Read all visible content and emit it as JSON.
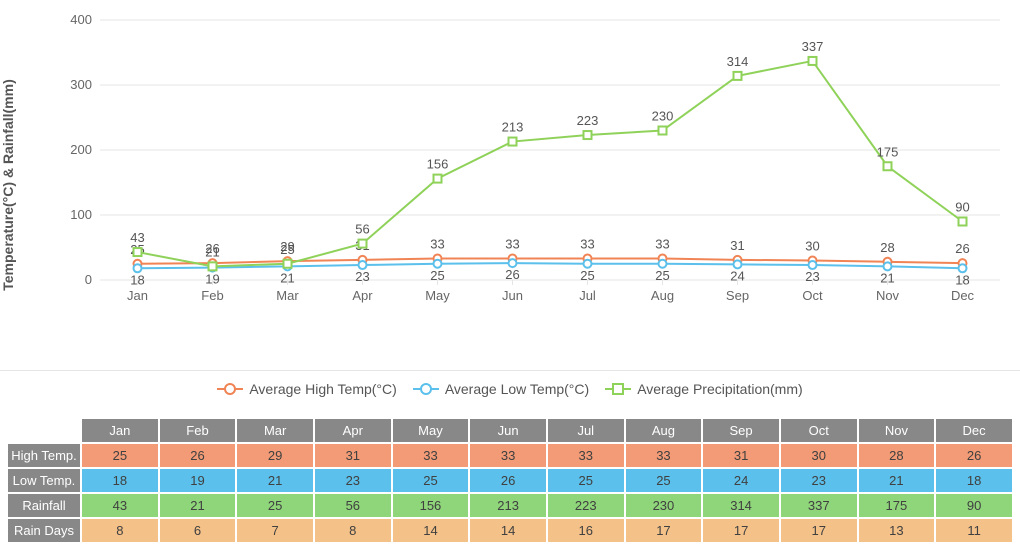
{
  "chart": {
    "type": "line",
    "y_axis_label": "Temperature(°C) & Rainfall(mm)",
    "y_axis_label_fontsize": 14,
    "categories": [
      "Jan",
      "Feb",
      "Mar",
      "Apr",
      "May",
      "Jun",
      "Jul",
      "Aug",
      "Sep",
      "Oct",
      "Nov",
      "Dec"
    ],
    "y_ticks": [
      0,
      100,
      200,
      300,
      400
    ],
    "ylim": [
      0,
      400
    ],
    "grid_color": "#e5e5e5",
    "background_color": "#ffffff",
    "label_fontsize": 13,
    "series": [
      {
        "key": "high",
        "name": "Average High Temp(°C)",
        "color": "#f08455",
        "marker": "circle",
        "values": [
          25,
          26,
          29,
          31,
          33,
          33,
          33,
          33,
          31,
          30,
          28,
          26
        ],
        "label_offset_y": -10
      },
      {
        "key": "low",
        "name": "Average Low Temp(°C)",
        "color": "#5bc0eb",
        "marker": "circle",
        "values": [
          18,
          19,
          21,
          23,
          25,
          26,
          25,
          25,
          24,
          23,
          21,
          18
        ],
        "label_offset_y": 16
      },
      {
        "key": "precip",
        "name": "Average Precipitation(mm)",
        "color": "#8fd259",
        "marker": "square",
        "values": [
          43,
          21,
          25,
          56,
          156,
          213,
          223,
          230,
          314,
          337,
          175,
          90
        ],
        "label_offset_y": -10
      }
    ]
  },
  "table": {
    "months": [
      "Jan",
      "Feb",
      "Mar",
      "Apr",
      "May",
      "Jun",
      "Jul",
      "Aug",
      "Sep",
      "Oct",
      "Nov",
      "Dec"
    ],
    "rows": [
      {
        "key": "high",
        "label": "High Temp.",
        "bg": "#f29b76",
        "values": [
          25,
          26,
          29,
          31,
          33,
          33,
          33,
          33,
          31,
          30,
          28,
          26
        ]
      },
      {
        "key": "low",
        "label": "Low Temp.",
        "bg": "#5bc0eb",
        "values": [
          18,
          19,
          21,
          23,
          25,
          26,
          25,
          25,
          24,
          23,
          21,
          18
        ]
      },
      {
        "key": "rain",
        "label": "Rainfall",
        "bg": "#8fd67a",
        "values": [
          43,
          21,
          25,
          56,
          156,
          213,
          223,
          230,
          314,
          337,
          175,
          90
        ]
      },
      {
        "key": "days",
        "label": "Rain Days",
        "bg": "#f4c188",
        "values": [
          8,
          6,
          7,
          8,
          14,
          14,
          16,
          17,
          17,
          17,
          13,
          11
        ]
      }
    ],
    "header_bg": "#888888",
    "header_color": "#ffffff"
  }
}
